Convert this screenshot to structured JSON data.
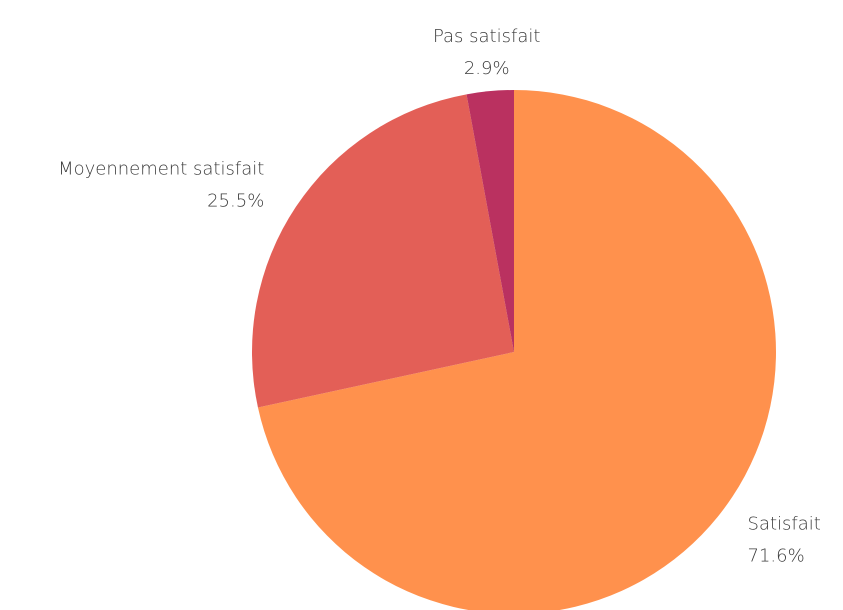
{
  "chart_data": {
    "type": "pie",
    "categories": [
      "Satisfait",
      "Moyennement satisfait",
      "Pas satisfait"
    ],
    "values": [
      71.6,
      25.5,
      2.9
    ],
    "value_labels": [
      "71.6%",
      "25.5%",
      "2.9%"
    ],
    "colors": [
      "#ff914d",
      "#e35f57",
      "#ba3160"
    ]
  }
}
